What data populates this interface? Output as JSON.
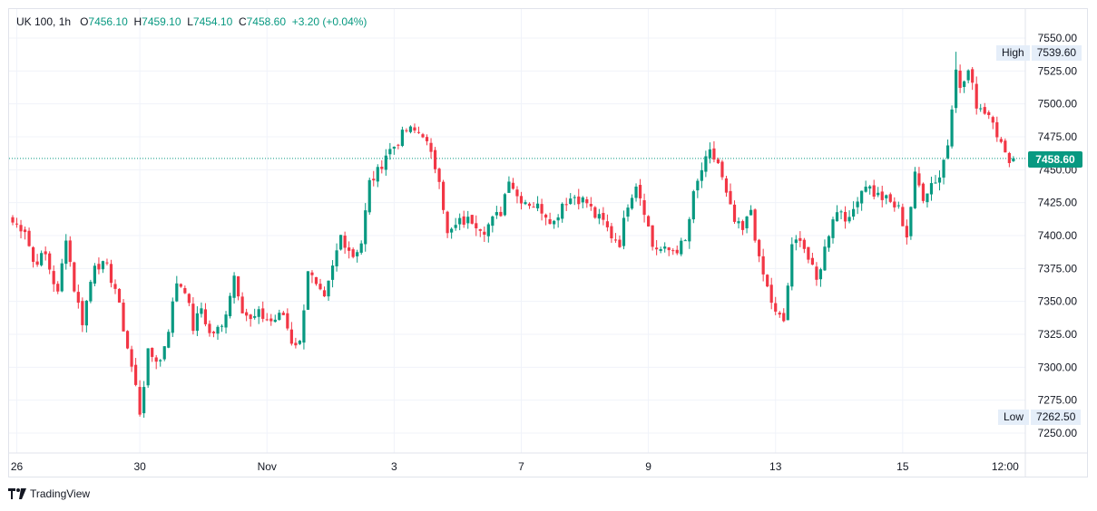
{
  "legend": {
    "symbol": "UK 100, 1h",
    "open_label": "O",
    "open": "7456.10",
    "high_label": "H",
    "high": "7459.10",
    "low_label": "L",
    "low": "7454.10",
    "close_label": "C",
    "close": "7458.60",
    "change": "+3.20 (+0.04%)"
  },
  "price_scale": {
    "last_price": "7458.60",
    "high_label": "High",
    "high_value": "7539.60",
    "low_label": "Low",
    "low_value": "7262.50"
  },
  "footer": {
    "brand": "TradingView"
  },
  "colors": {
    "up": "#089981",
    "down": "#f23645",
    "grid": "#f0f3fa"
  },
  "chart_data": {
    "type": "candlestick",
    "symbol": "UK 100",
    "interval": "1h",
    "ylim": [
      7240,
      7560
    ],
    "y_ticks": [
      7550,
      7525,
      7500,
      7475,
      7450,
      7425,
      7400,
      7375,
      7350,
      7325,
      7300,
      7275,
      7250
    ],
    "x_ticks": [
      {
        "label": "26",
        "index": 1
      },
      {
        "label": "30",
        "index": 31
      },
      {
        "label": "Nov",
        "index": 62
      },
      {
        "label": "3",
        "index": 93
      },
      {
        "label": "7",
        "index": 124
      },
      {
        "label": "9",
        "index": 155
      },
      {
        "label": "13",
        "index": 186
      },
      {
        "label": "15",
        "index": 217
      },
      {
        "label": "12:00",
        "index": 242
      }
    ],
    "last_price": 7458.6,
    "series_high": 7539.6,
    "series_low": 7262.5,
    "grid": true,
    "anchors": [
      [
        0,
        7410
      ],
      [
        3,
        7405
      ],
      [
        5,
        7380
      ],
      [
        8,
        7385
      ],
      [
        11,
        7355
      ],
      [
        13,
        7400
      ],
      [
        15,
        7360
      ],
      [
        17,
        7335
      ],
      [
        20,
        7380
      ],
      [
        23,
        7375
      ],
      [
        25,
        7360
      ],
      [
        27,
        7330
      ],
      [
        29,
        7300
      ],
      [
        30,
        7285
      ],
      [
        31,
        7266
      ],
      [
        33,
        7310
      ],
      [
        36,
        7305
      ],
      [
        38,
        7330
      ],
      [
        40,
        7365
      ],
      [
        42,
        7360
      ],
      [
        44,
        7330
      ],
      [
        46,
        7345
      ],
      [
        48,
        7325
      ],
      [
        51,
        7330
      ],
      [
        54,
        7370
      ],
      [
        56,
        7345
      ],
      [
        58,
        7335
      ],
      [
        60,
        7340
      ],
      [
        63,
        7335
      ],
      [
        66,
        7340
      ],
      [
        68,
        7320
      ],
      [
        70,
        7318
      ],
      [
        72,
        7375
      ],
      [
        74,
        7360
      ],
      [
        76,
        7350
      ],
      [
        78,
        7375
      ],
      [
        80,
        7400
      ],
      [
        83,
        7385
      ],
      [
        85,
        7395
      ],
      [
        87,
        7440
      ],
      [
        89,
        7448
      ],
      [
        91,
        7462
      ],
      [
        93,
        7468
      ],
      [
        96,
        7480
      ],
      [
        100,
        7478
      ],
      [
        102,
        7460
      ],
      [
        104,
        7445
      ],
      [
        106,
        7400
      ],
      [
        109,
        7410
      ],
      [
        112,
        7412
      ],
      [
        115,
        7405
      ],
      [
        119,
        7418
      ],
      [
        121,
        7445
      ],
      [
        123,
        7430
      ],
      [
        126,
        7425
      ],
      [
        129,
        7420
      ],
      [
        132,
        7410
      ],
      [
        134,
        7425
      ],
      [
        137,
        7430
      ],
      [
        140,
        7425
      ],
      [
        142,
        7415
      ],
      [
        144,
        7410
      ],
      [
        146,
        7400
      ],
      [
        148,
        7395
      ],
      [
        150,
        7425
      ],
      [
        152,
        7440
      ],
      [
        154,
        7420
      ],
      [
        156,
        7392
      ],
      [
        159,
        7388
      ],
      [
        162,
        7390
      ],
      [
        164,
        7395
      ],
      [
        166,
        7430
      ],
      [
        168,
        7450
      ],
      [
        170,
        7462
      ],
      [
        172,
        7455
      ],
      [
        174,
        7430
      ],
      [
        176,
        7410
      ],
      [
        178,
        7403
      ],
      [
        180,
        7420
      ],
      [
        182,
        7380
      ],
      [
        184,
        7360
      ],
      [
        186,
        7340
      ],
      [
        188,
        7335
      ],
      [
        190,
        7390
      ],
      [
        192,
        7400
      ],
      [
        194,
        7382
      ],
      [
        196,
        7365
      ],
      [
        198,
        7390
      ],
      [
        200,
        7415
      ],
      [
        202,
        7420
      ],
      [
        204,
        7410
      ],
      [
        206,
        7430
      ],
      [
        208,
        7440
      ],
      [
        210,
        7432
      ],
      [
        213,
        7427
      ],
      [
        216,
        7420
      ],
      [
        218,
        7400
      ],
      [
        220,
        7445
      ],
      [
        222,
        7430
      ],
      [
        224,
        7440
      ],
      [
        226,
        7445
      ],
      [
        228,
        7470
      ],
      [
        230,
        7530
      ],
      [
        231,
        7510
      ],
      [
        233,
        7525
      ],
      [
        235,
        7500
      ],
      [
        237,
        7495
      ],
      [
        239,
        7490
      ],
      [
        240,
        7478
      ],
      [
        242,
        7460
      ],
      [
        244,
        7458.6
      ]
    ]
  }
}
